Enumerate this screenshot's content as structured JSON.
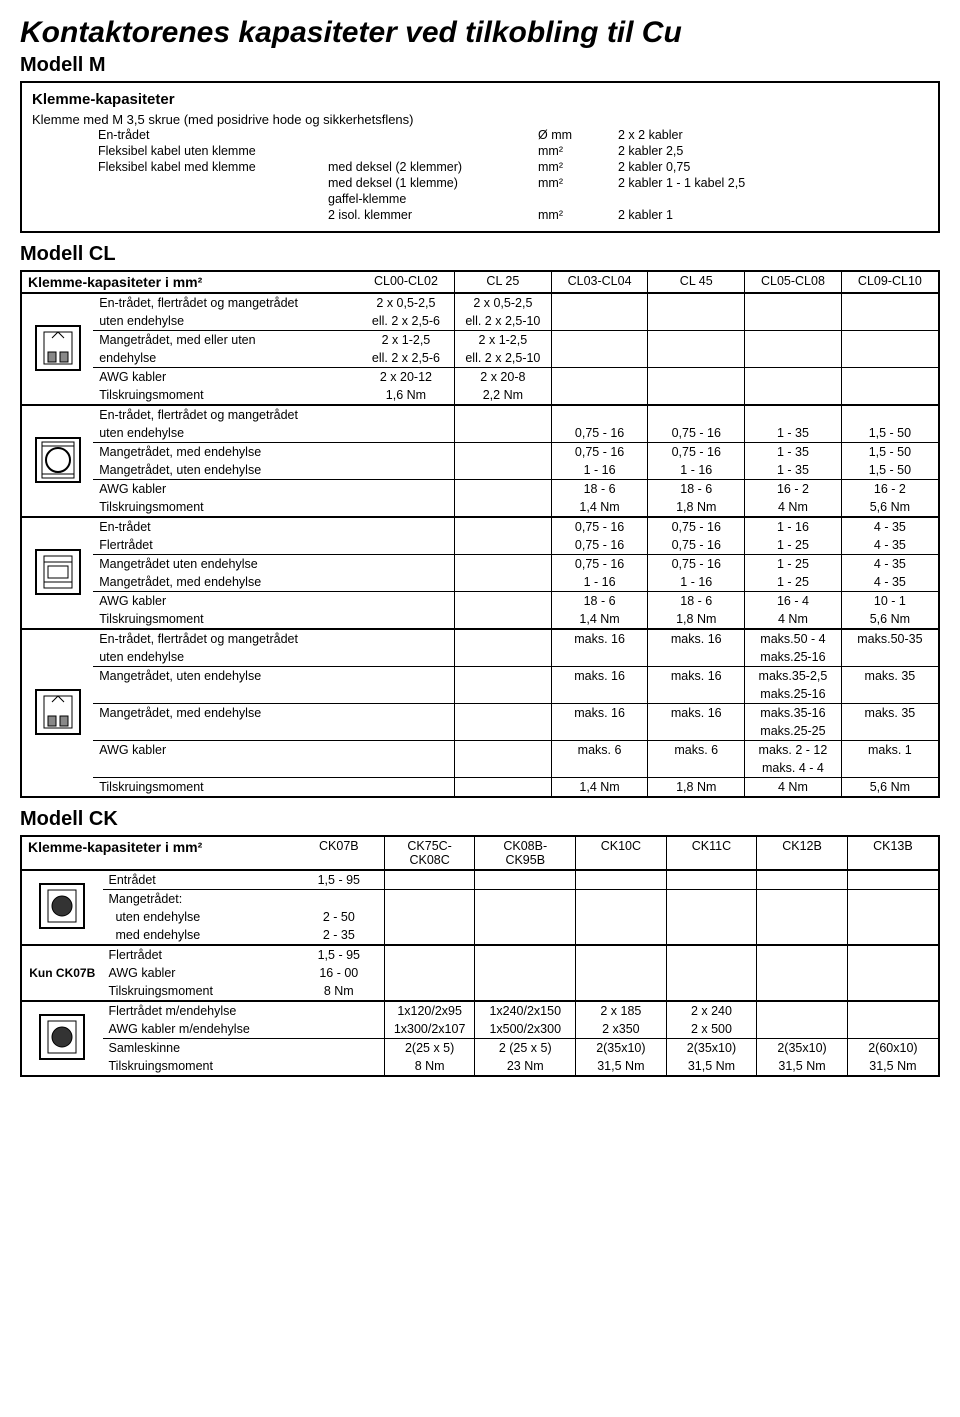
{
  "title": "Kontaktorenes kapasiteter ved tilkobling til Cu",
  "modelM": {
    "heading": "Modell M",
    "subheading": "Klemme-kapasiteter",
    "subdesc": "Klemme med M 3,5 skrue (med posidrive hode og sikkerhetsflens)",
    "rows": [
      {
        "a": "En-trådet",
        "b": "",
        "c": "Ø mm",
        "d": "2 x 2 kabler"
      },
      {
        "a": "Fleksibel kabel uten klemme",
        "b": "",
        "c": "mm²",
        "d": "2 kabler 2,5"
      },
      {
        "a": "Fleksibel kabel med klemme",
        "b": "med deksel (2 klemmer)",
        "c": "mm²",
        "d": "2 kabler 0,75"
      },
      {
        "a": "",
        "b": "med deksel (1 klemme)",
        "c": "mm²",
        "d": "2 kabler 1 - 1 kabel 2,5"
      },
      {
        "a": "",
        "b": "gaffel-klemme",
        "c": "",
        "d": ""
      },
      {
        "a": "",
        "b": "2 isol. klemmer",
        "c": "mm²",
        "d": "2 kabler 1"
      }
    ]
  },
  "modelCL": {
    "heading": "Modell CL",
    "tableTitle": "Klemme-kapasiteter i mm²",
    "cols": [
      "CL00-CL02",
      "CL 25",
      "CL03-CL04",
      "CL 45",
      "CL05-CL08",
      "CL09-CL10"
    ],
    "section1": {
      "rows": [
        {
          "label": "En-trådet, flertrådet og mangetrådet",
          "c0": "2 x 0,5-2,5",
          "c1": "2 x 0,5-2,5"
        },
        {
          "label": "uten endehylse",
          "c0": "ell. 2 x 2,5-6",
          "c1": "ell. 2 x 2,5-10"
        },
        {
          "label": "Mangetrådet, med eller uten",
          "c0": "2 x 1-2,5",
          "c1": "2 x 1-2,5",
          "sep": true
        },
        {
          "label": "endehylse",
          "c0": "ell. 2 x 2,5-6",
          "c1": "ell. 2 x 2,5-10"
        },
        {
          "label": "AWG kabler",
          "c0": "2 x 20-12",
          "c1": "2 x 20-8",
          "sep": true
        },
        {
          "label": "Tilskruingsmoment",
          "c0": "1,6 Nm",
          "c1": "2,2 Nm"
        }
      ]
    },
    "section2": {
      "rows": [
        {
          "label": "En-trådet, flertrådet og mangetrådet"
        },
        {
          "label": "uten endehylse",
          "c2": "0,75 - 16",
          "c3": "0,75 - 16",
          "c4": "1 - 35",
          "c5": "1,5 - 50"
        },
        {
          "label": "Mangetrådet, med endehylse",
          "c2": "0,75 - 16",
          "c3": "0,75 - 16",
          "c4": "1 - 35",
          "c5": "1,5 - 50",
          "sep": true
        },
        {
          "label": "Mangetrådet, uten endehylse",
          "c2": "1 - 16",
          "c3": "1 - 16",
          "c4": "1 - 35",
          "c5": "1,5 - 50"
        },
        {
          "label": "AWG kabler",
          "c2": "18 - 6",
          "c3": "18 - 6",
          "c4": "16 - 2",
          "c5": "16 - 2",
          "sep": true
        },
        {
          "label": "Tilskruingsmoment",
          "c2": "1,4 Nm",
          "c3": "1,8 Nm",
          "c4": "4 Nm",
          "c5": "5,6 Nm"
        }
      ]
    },
    "section3": {
      "rows": [
        {
          "label": "En-trådet",
          "c2": "0,75 - 16",
          "c3": "0,75 - 16",
          "c4": "1 - 16",
          "c5": "4 - 35"
        },
        {
          "label": "Flertrådet",
          "c2": "0,75 - 16",
          "c3": "0,75 - 16",
          "c4": "1 - 25",
          "c5": "4 - 35"
        },
        {
          "label": "Mangetrådet uten endehylse",
          "c2": "0,75 - 16",
          "c3": "0,75 - 16",
          "c4": "1 - 25",
          "c5": "4 - 35",
          "sep": true
        },
        {
          "label": "Mangetrådet, med endehylse",
          "c2": "1 - 16",
          "c3": "1 - 16",
          "c4": "1 - 25",
          "c5": "4 - 35"
        },
        {
          "label": "AWG kabler",
          "c2": "18 - 6",
          "c3": "18 - 6",
          "c4": "16 - 4",
          "c5": "10 - 1",
          "sep": true
        },
        {
          "label": "Tilskruingsmoment",
          "c2": "1,4 Nm",
          "c3": "1,8 Nm",
          "c4": "4 Nm",
          "c5": "5,6 Nm"
        }
      ]
    },
    "section4": {
      "rows": [
        {
          "label": "En-trådet, flertrådet og mangetrådet",
          "c2": "maks. 16",
          "c3": "maks. 16",
          "c4": "maks.50 - 4",
          "c5": "maks.50-35"
        },
        {
          "label": "uten endehylse",
          "c4": "maks.25-16"
        },
        {
          "label": "Mangetrådet, uten endehylse",
          "c2": "maks. 16",
          "c3": "maks. 16",
          "c4": "maks.35-2,5",
          "c5": "maks. 35",
          "sep": true
        },
        {
          "label": "",
          "c4": "maks.25-16"
        },
        {
          "label": "Mangetrådet, med endehylse",
          "c2": "maks. 16",
          "c3": "maks. 16",
          "c4": "maks.35-16",
          "c5": "maks. 35",
          "sep": true
        },
        {
          "label": "",
          "c4": "maks.25-25"
        },
        {
          "label": "AWG kabler",
          "c2": "maks. 6",
          "c3": "maks. 6",
          "c4": "maks. 2 - 12",
          "c5": "maks. 1",
          "sep": true
        },
        {
          "label": "",
          "c4": "maks. 4 - 4"
        },
        {
          "label": "Tilskruingsmoment",
          "c2": "1,4 Nm",
          "c3": "1,8 Nm",
          "c4": "4 Nm",
          "c5": "5,6 Nm",
          "sep": true
        }
      ]
    }
  },
  "modelCK": {
    "heading": "Modell CK",
    "tableTitle": "Klemme-kapasiteter i mm²",
    "cols": [
      "CK07B",
      "CK75C-\nCK08C",
      "CK08B-\nCK95B",
      "CK10C",
      "CK11C",
      "CK12B",
      "CK13B"
    ],
    "iconLabel": "Kun CK07B",
    "section1": {
      "rows": [
        {
          "label": "Entrådet",
          "c0": "1,5 - 95"
        },
        {
          "label": "Mangetrådet:",
          "sep": true
        },
        {
          "label": "  uten endehylse",
          "c0": "2 - 50"
        },
        {
          "label": "  med endehylse",
          "c0": "2 - 35"
        }
      ]
    },
    "section2": {
      "rows": [
        {
          "label": "Flertrådet",
          "c0": "1,5 - 95"
        },
        {
          "label": "AWG kabler",
          "c0": "16 - 00"
        },
        {
          "label": "Tilskruingsmoment",
          "c0": "8 Nm"
        }
      ]
    },
    "section3": {
      "rows": [
        {
          "label": "Flertrådet m/endehylse",
          "c1": "1x120/2x95",
          "c2": "1x240/2x150",
          "c3": "2 x 185",
          "c4": "2 x 240"
        },
        {
          "label": "AWG kabler m/endehylse",
          "c1": "1x300/2x107",
          "c2": "1x500/2x300",
          "c3": "2 x350",
          "c4": "2 x 500"
        },
        {
          "label": "Samleskinne",
          "c1": "2(25 x 5)",
          "c2": "2 (25 x 5)",
          "c3": "2(35x10)",
          "c4": "2(35x10)",
          "c5": "2(35x10)",
          "c6": "2(60x10)",
          "sep": true
        },
        {
          "label": "Tilskruingsmoment",
          "c1": "8 Nm",
          "c2": "23 Nm",
          "c3": "31,5 Nm",
          "c4": "31,5 Nm",
          "c5": "31,5 Nm",
          "c6": "31,5 Nm"
        }
      ]
    }
  }
}
